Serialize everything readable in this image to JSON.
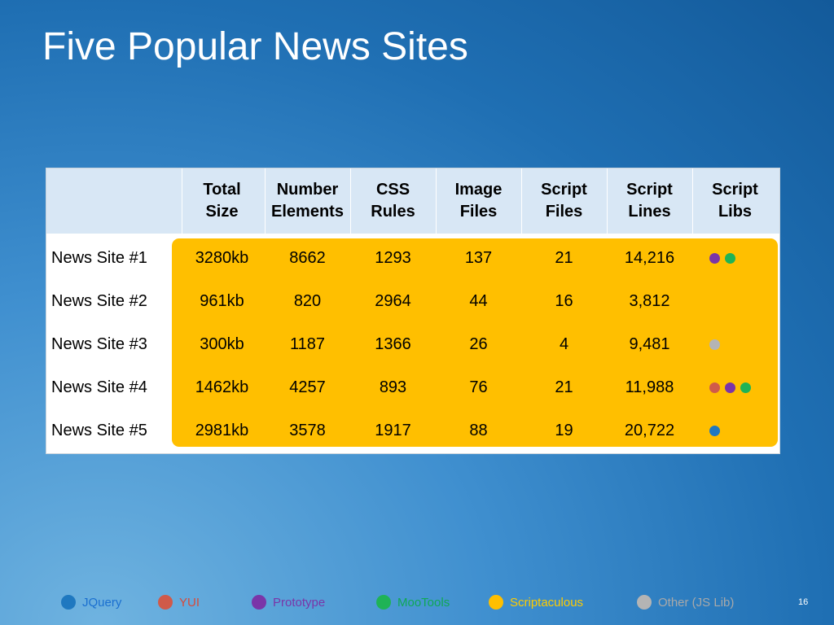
{
  "slide": {
    "title": "Five Popular News Sites",
    "page_number": "16"
  },
  "table": {
    "columns": [
      {
        "label": "Total\nSize"
      },
      {
        "label": "Number\nElements"
      },
      {
        "label": "CSS\nRules"
      },
      {
        "label": "Image\nFiles"
      },
      {
        "label": "Script\nFiles"
      },
      {
        "label": "Script\nLines"
      },
      {
        "label": "Script\nLibs"
      }
    ],
    "rows": [
      {
        "name": "News Site #1",
        "total_size": "3280kb",
        "elements": "8662",
        "css_rules": "1293",
        "image_files": "137",
        "script_files": "21",
        "script_lines": "14,216",
        "libs": [
          "prototype",
          "mootools"
        ]
      },
      {
        "name": "News Site #2",
        "total_size": "961kb",
        "elements": "820",
        "css_rules": "2964",
        "image_files": "44",
        "script_files": "16",
        "script_lines": "3,812",
        "libs": []
      },
      {
        "name": "News Site #3",
        "total_size": "300kb",
        "elements": "1187",
        "css_rules": "1366",
        "image_files": "26",
        "script_files": "4",
        "script_lines": "9,481",
        "libs": [
          "other"
        ]
      },
      {
        "name": "News Site #4",
        "total_size": "1462kb",
        "elements": "4257",
        "css_rules": "893",
        "image_files": "76",
        "script_files": "21",
        "script_lines": "11,988",
        "libs": [
          "yui",
          "prototype",
          "mootools"
        ]
      },
      {
        "name": "News Site #5",
        "total_size": "2981kb",
        "elements": "3578",
        "css_rules": "1917",
        "image_files": "88",
        "script_files": "19",
        "script_lines": "20,722",
        "libs": [
          "jquery"
        ]
      }
    ]
  },
  "legend": {
    "items": [
      {
        "key": "jquery",
        "label": "JQuery",
        "color": "#1f78c0",
        "text_color": "#1a6fd0"
      },
      {
        "key": "yui",
        "label": "YUI",
        "color": "#d05a4a",
        "text_color": "#d84a3a"
      },
      {
        "key": "prototype",
        "label": "Prototype",
        "color": "#7a35a8",
        "text_color": "#7a35a8"
      },
      {
        "key": "mootools",
        "label": "MooTools",
        "color": "#1fb356",
        "text_color": "#0fa855"
      },
      {
        "key": "scriptaculous",
        "label": "Scriptaculous",
        "color": "#ffbf00",
        "text_color": "#ffcc00"
      },
      {
        "key": "other",
        "label": "Other (JS Lib)",
        "color": "#b4b4b4",
        "text_color": "#a9a9a9"
      }
    ]
  }
}
